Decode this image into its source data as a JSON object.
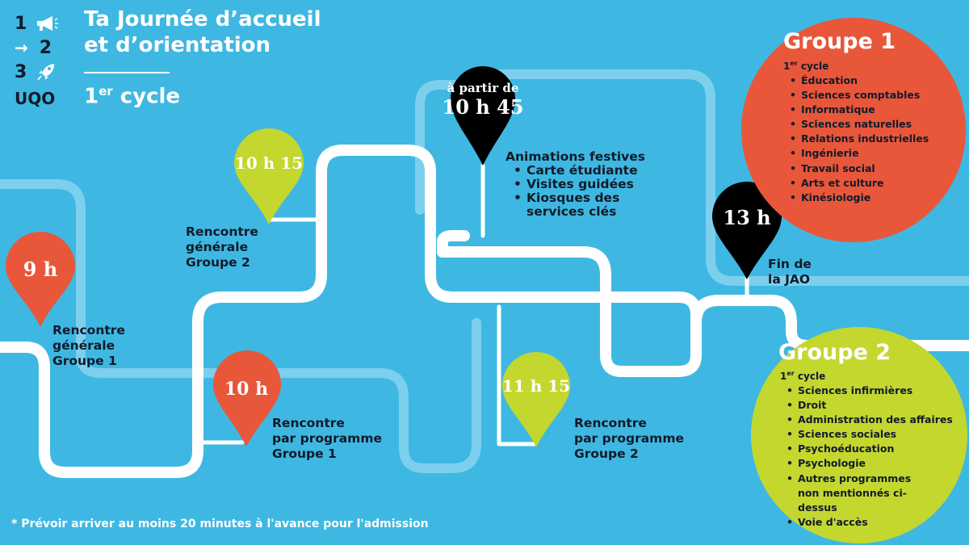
{
  "colors": {
    "background": "#3eb8e2",
    "road": "#ffffff",
    "road_faded": "#7dcfee",
    "orange": "#e8573a",
    "lime": "#c3d72f",
    "black": "#000000",
    "dark_text": "#121a2a"
  },
  "logo": {
    "digit_1": "1",
    "digit_2": "2",
    "digit_3": "3",
    "arrow": "→",
    "megaphone_icon": "megaphone-icon",
    "rocket_icon": "rocket-icon",
    "brand": "UQO"
  },
  "header": {
    "title_line1": "Ta Journée d’accueil",
    "title_line2": "et d’orientation",
    "subtitle_num": "1",
    "subtitle_sup": "er",
    "subtitle_word": " cycle"
  },
  "pins": {
    "p9h": "9 h",
    "p10h": "10 h",
    "p1015": "10 h 15",
    "p1045_top": "à partir de",
    "p1045": "10 h 45",
    "p1115": "11 h 15",
    "p13h": "13 h"
  },
  "labels": {
    "gen1": [
      "Rencontre",
      "générale",
      "Groupe 1"
    ],
    "gen2": [
      "Rencontre",
      "générale",
      "Groupe 2"
    ],
    "prog1": [
      "Rencontre",
      "par programme",
      "Groupe 1"
    ],
    "prog2": [
      "Rencontre",
      "par programme",
      "Groupe 2"
    ],
    "festive_title": "Animations festives",
    "festive_items": [
      "Carte étudiante",
      "Visites guidées",
      "Kiosques des services clés"
    ],
    "end": [
      "Fin de",
      "la JAO"
    ]
  },
  "groupe1": {
    "title": "Groupe 1",
    "cycle_num": "1",
    "cycle_sup": "er",
    "cycle_word": " cycle",
    "items": [
      "Éducation",
      "Sciences comptables",
      "Informatique",
      "Sciences naturelles",
      "Relations industrielles",
      "Ingénierie",
      "Travail social",
      "Arts et culture",
      "Kinésiologie"
    ]
  },
  "groupe2": {
    "title": "Groupe 2",
    "cycle_num": "1",
    "cycle_sup": "er",
    "cycle_word": " cycle",
    "items": [
      "Sciences infirmières",
      "Droit",
      "Administration des affaires",
      "Sciences sociales",
      "Psychoéducation",
      "Psychologie",
      "Autres programmes non mentionnés ci-dessus",
      "Voie d'accès"
    ]
  },
  "footnote": "* Prévoir arriver au moins 20 minutes à l'avance pour l'admission"
}
